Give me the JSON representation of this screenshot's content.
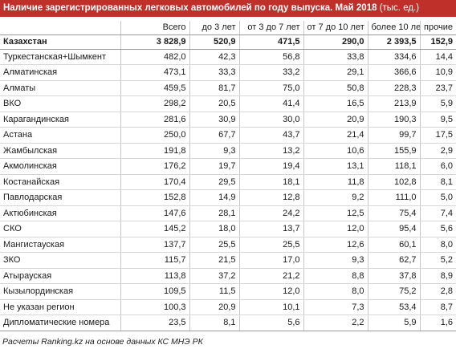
{
  "title": "Наличие зарегистрированных легковых автомобилей по году выпуска. Май 2018",
  "title_unit": "(тыс. ед.)",
  "colors": {
    "header": "#c0302b"
  },
  "columns": [
    "",
    "Всего",
    "до 3 лет",
    "от 3 до 7 лет",
    "от 7 до 10 лет",
    "более 10 лет",
    "прочие"
  ],
  "total_row": {
    "region": "Казахстан",
    "values": [
      "3 828,9",
      "520,9",
      "471,5",
      "290,0",
      "2 393,5",
      "152,9"
    ]
  },
  "rows": [
    {
      "region": "Туркестанская+Шымкент",
      "values": [
        "482,0",
        "42,3",
        "56,8",
        "33,8",
        "334,6",
        "14,4"
      ]
    },
    {
      "region": "Алматинская",
      "values": [
        "473,1",
        "33,3",
        "33,2",
        "29,1",
        "366,6",
        "10,9"
      ]
    },
    {
      "region": "Алматы",
      "values": [
        "459,5",
        "81,7",
        "75,0",
        "50,8",
        "228,3",
        "23,7"
      ]
    },
    {
      "region": "ВКО",
      "values": [
        "298,2",
        "20,5",
        "41,4",
        "16,5",
        "213,9",
        "5,9"
      ]
    },
    {
      "region": "Карагандинская",
      "values": [
        "281,6",
        "30,9",
        "30,0",
        "20,9",
        "190,3",
        "9,5"
      ]
    },
    {
      "region": "Астана",
      "values": [
        "250,0",
        "67,7",
        "43,7",
        "21,4",
        "99,7",
        "17,5"
      ]
    },
    {
      "region": "Жамбылская",
      "values": [
        "191,8",
        "9,3",
        "13,2",
        "10,6",
        "155,9",
        "2,9"
      ]
    },
    {
      "region": "Акмолинская",
      "values": [
        "176,2",
        "19,7",
        "19,4",
        "13,1",
        "118,1",
        "6,0"
      ]
    },
    {
      "region": "Костанайская",
      "values": [
        "170,4",
        "29,5",
        "18,1",
        "11,8",
        "102,8",
        "8,1"
      ]
    },
    {
      "region": "Павлодарская",
      "values": [
        "152,8",
        "14,9",
        "12,8",
        "9,2",
        "111,0",
        "5,0"
      ]
    },
    {
      "region": "Актюбинская",
      "values": [
        "147,6",
        "28,1",
        "24,2",
        "12,5",
        "75,4",
        "7,4"
      ]
    },
    {
      "region": "СКО",
      "values": [
        "145,2",
        "18,0",
        "13,7",
        "12,0",
        "95,4",
        "5,6"
      ]
    },
    {
      "region": "Мангистауская",
      "values": [
        "137,7",
        "25,5",
        "25,5",
        "12,6",
        "60,1",
        "8,0"
      ]
    },
    {
      "region": "ЗКО",
      "values": [
        "115,7",
        "21,5",
        "17,0",
        "9,3",
        "62,7",
        "5,2"
      ]
    },
    {
      "region": "Атырауская",
      "values": [
        "113,8",
        "37,2",
        "21,2",
        "8,8",
        "37,8",
        "8,9"
      ]
    },
    {
      "region": "Кызылординская",
      "values": [
        "109,5",
        "11,5",
        "12,0",
        "8,0",
        "75,2",
        "2,8"
      ]
    },
    {
      "region": "Не указан регион",
      "values": [
        "100,3",
        "20,9",
        "10,1",
        "7,3",
        "53,4",
        "8,7"
      ]
    },
    {
      "region": "Дипломатические номера",
      "values": [
        "23,5",
        "8,1",
        "5,6",
        "2,2",
        "5,9",
        "1,6"
      ]
    }
  ],
  "footnote": "Расчеты Ranking.kz на основе данных КС МНЭ РК"
}
